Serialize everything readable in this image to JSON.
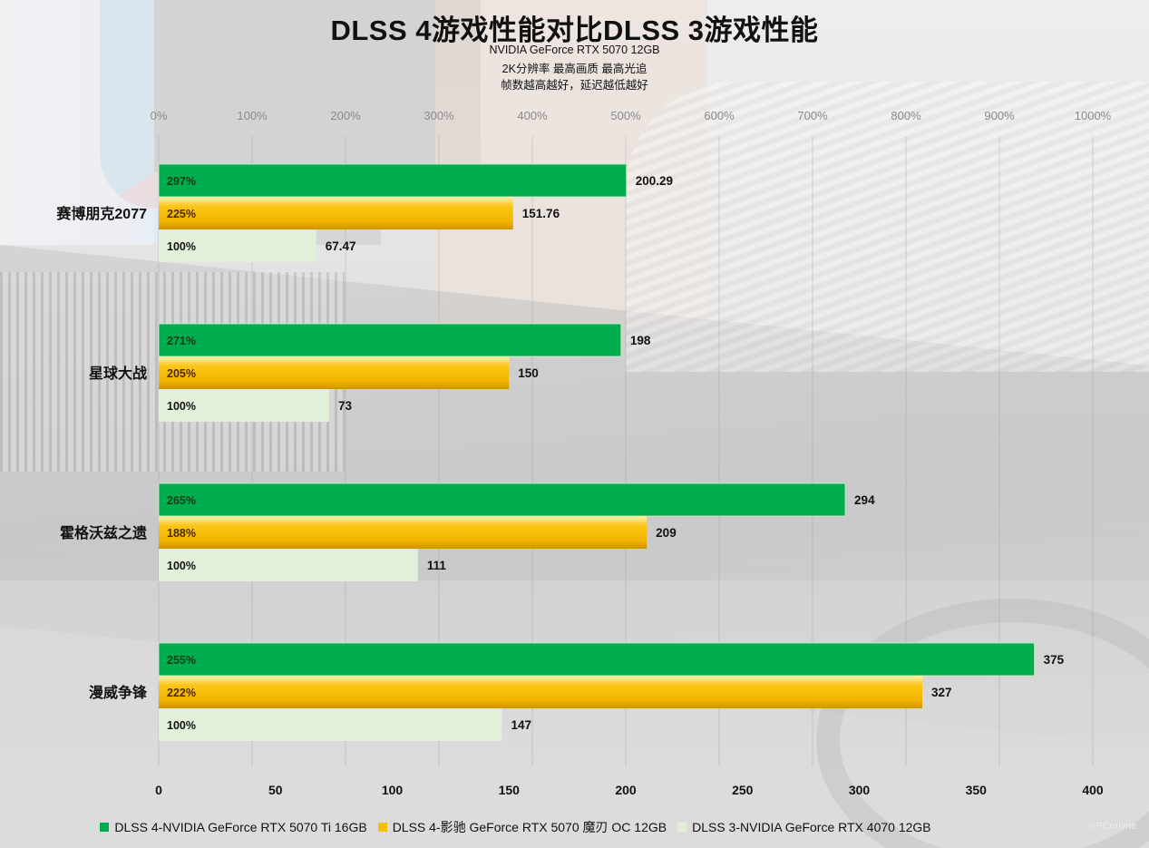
{
  "header": {
    "title": "DLSS 4游戏性能对比DLSS 3游戏性能",
    "subtitle_1": "NVIDIA GeForce RTX 5070 12GB",
    "subtitle_2": "2K分辨率 最高画质 最高光追",
    "subtitle_3": "帧数越高越好，延迟越低越好"
  },
  "watermark": "©PConline",
  "chart_data": {
    "type": "bar",
    "orientation": "horizontal",
    "title": "DLSS 4游戏性能对比DLSS 3游戏性能",
    "categories": [
      "赛博朋克2077",
      "星球大战",
      "霍格沃兹之遗",
      "漫威争锋"
    ],
    "series": [
      {
        "name": "DLSS 4-NVIDIA GeForce RTX 5070 Ti 16GB",
        "color": "#00ad4e",
        "pct_color": "#1a3a1a",
        "values": [
          200.29,
          198,
          294,
          375
        ],
        "value_labels": [
          "200.29",
          "198",
          "294",
          "375"
        ],
        "pct_labels": [
          "297%",
          "271%",
          "265%",
          "255%"
        ]
      },
      {
        "name": "DLSS 4-影驰 GeForce RTX 5070 魔刃 OC 12GB",
        "color": "#f5b800",
        "pct_color": "#4a2a00",
        "values": [
          151.76,
          150,
          209,
          327
        ],
        "value_labels": [
          "151.76",
          "150",
          "209",
          "327"
        ],
        "pct_labels": [
          "225%",
          "205%",
          "188%",
          "222%"
        ]
      },
      {
        "name": "DLSS 3-NVIDIA GeForce RTX 4070 12GB",
        "color": "#e2efd9",
        "pct_color": "#111111",
        "values": [
          67.47,
          73,
          111,
          147
        ],
        "value_labels": [
          "67.47",
          "73",
          "111",
          "147"
        ],
        "pct_labels": [
          "100%",
          "100%",
          "100%",
          "100%"
        ]
      }
    ],
    "x_axis": {
      "range": [
        0,
        400
      ],
      "ticks": [
        0,
        50,
        100,
        150,
        200,
        250,
        300,
        350,
        400
      ],
      "tick_labels": [
        "0",
        "50",
        "100",
        "150",
        "200",
        "250",
        "300",
        "350",
        "400"
      ],
      "position": "bottom"
    },
    "x2_axis": {
      "range": [
        0,
        1000
      ],
      "ticks": [
        0,
        100,
        200,
        300,
        400,
        500,
        600,
        700,
        800,
        900,
        1000
      ],
      "tick_labels": [
        "0%",
        "100%",
        "200%",
        "300%",
        "400%",
        "500%",
        "600%",
        "700%",
        "800%",
        "900%",
        "1000%"
      ],
      "position": "top"
    },
    "grid": true,
    "legend_position": "bottom"
  }
}
